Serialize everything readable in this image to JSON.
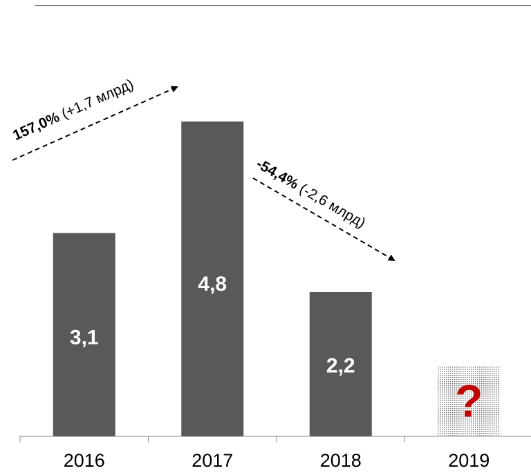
{
  "chart_data": {
    "type": "bar",
    "categories": [
      "2016",
      "2017",
      "2018",
      "2019"
    ],
    "values": [
      3.1,
      4.8,
      2.2,
      null
    ],
    "value_labels": [
      "3,1",
      "4,8",
      "2,2",
      "?"
    ],
    "color": "#595959",
    "ylim": [
      0,
      5
    ],
    "annotations": [
      {
        "bold": "157,0%",
        "text": " (+1,7 млрд)"
      },
      {
        "bold": "-54,4%",
        "text": " (-2,6 млрд)"
      }
    ]
  }
}
